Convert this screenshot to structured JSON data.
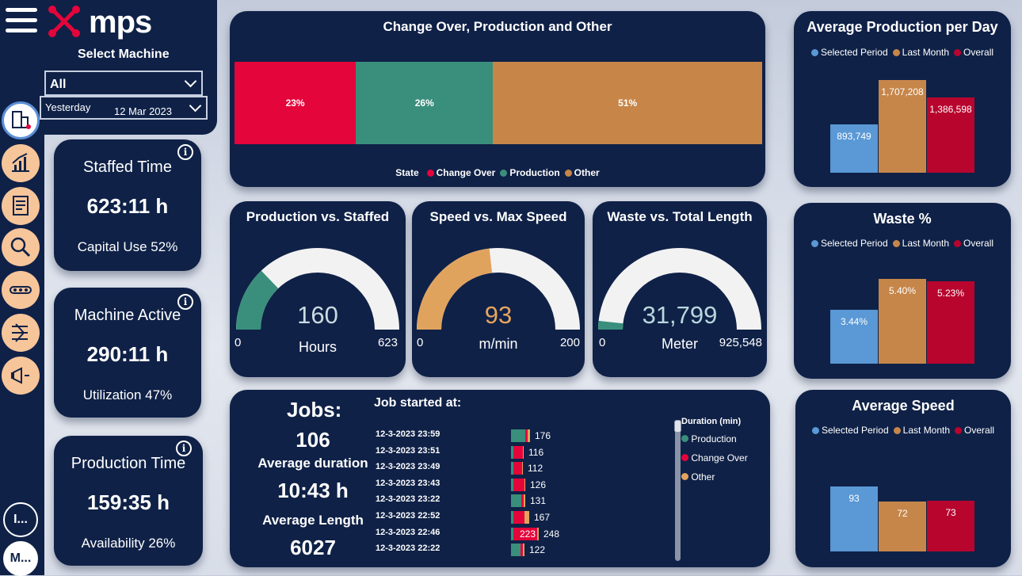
{
  "app": {
    "logo_text": "mps",
    "select_machine_label": "Select Machine"
  },
  "filters": {
    "machine": {
      "value": "All"
    },
    "period": {
      "value": "Yesterday",
      "date": "12 Mar 2023"
    }
  },
  "nav": {
    "items": [
      {
        "icon": "building-icon",
        "active": true
      },
      {
        "icon": "bar-chart-icon",
        "active": false
      },
      {
        "icon": "report-icon",
        "active": false
      },
      {
        "icon": "magnifier-icon",
        "active": false
      },
      {
        "icon": "conveyor-icon",
        "active": false
      },
      {
        "icon": "workflow-icon",
        "active": false
      },
      {
        "icon": "megaphone-icon",
        "active": false
      }
    ],
    "bottom_buttons": [
      {
        "label": "I..."
      },
      {
        "label": "M..."
      }
    ]
  },
  "kpis": [
    {
      "title": "Staffed Time",
      "value": "623:11 h",
      "sub": "Capital Use 52%",
      "info": "i"
    },
    {
      "title": "Machine Active",
      "value": "290:11 h",
      "sub": "Utilization 47%",
      "info": "i"
    },
    {
      "title": "Production Time",
      "value": "159:35 h",
      "sub": "Availability 26%",
      "info": "i"
    }
  ],
  "states_chart": {
    "title": "Change Over, Production and Other",
    "legend_title": "State",
    "segments": [
      {
        "name": "Change Over",
        "value": 23,
        "label": "23%",
        "color": "#e4053b"
      },
      {
        "name": "Production",
        "value": 26,
        "label": "26%",
        "color": "#3a8f7c"
      },
      {
        "name": "Other",
        "value": 51,
        "label": "51%",
        "color": "#c78547"
      }
    ]
  },
  "gauges": [
    {
      "title": "Production vs. Staffed",
      "value": 160,
      "display": "160",
      "unit": "Hours",
      "min": "0",
      "max": "623",
      "max_value": 623,
      "color": "#3a8f7c",
      "value_color": "#c9dbe0"
    },
    {
      "title": "Speed vs. Max Speed",
      "value": 93,
      "display": "93",
      "unit": "m/min",
      "min": "0",
      "max": "200",
      "max_value": 200,
      "color": "#e0a35e",
      "value_color": "#e7a55e"
    },
    {
      "title": "Waste vs. Total Length",
      "value": 31799,
      "display": "31,799",
      "unit": "Meter",
      "min": "0",
      "max": "925,548",
      "max_value": 925548,
      "color": "#3a8f7c",
      "value_color": "#b9d7de"
    }
  ],
  "legend_labels": {
    "selected": "Selected Period",
    "last_month": "Last Month",
    "overall": "Overall"
  },
  "colors": {
    "selected": "#5a98d6",
    "last_month": "#c6864a",
    "overall": "#b8052e",
    "panel": "#0f2147"
  },
  "compare_charts": [
    {
      "title": "Average Production per Day",
      "values": [
        893749,
        1707208,
        1386598
      ],
      "labels": [
        "893,749",
        "1,707,208",
        "1,386,598"
      ],
      "ymax": 1900000
    },
    {
      "title": "Waste %",
      "values": [
        3.44,
        5.4,
        5.23
      ],
      "labels": [
        "3.44%",
        "5.40%",
        "5.23%"
      ],
      "ymax": 6.6
    },
    {
      "title": "Average Speed",
      "values": [
        93,
        72,
        73
      ],
      "labels": [
        "93",
        "72",
        "73"
      ],
      "ymax": 150
    }
  ],
  "jobs": {
    "heading": "Jobs:",
    "count": "106",
    "avg_duration_label": "Average duration",
    "avg_duration": "10:43 h",
    "avg_length_label": "Average Length",
    "avg_length": "6027",
    "list_title": "Job started at:",
    "legend_title": "Duration (min)",
    "legend": [
      {
        "name": "Production",
        "color": "#3a8f7c"
      },
      {
        "name": "Change Over",
        "color": "#e4053b"
      },
      {
        "name": "Other",
        "color": "#e0a35e"
      }
    ],
    "rows": [
      {
        "time": "12-3-2023 23:59",
        "total": "176",
        "parts": [
          18,
          3,
          3
        ]
      },
      {
        "time": "12-3-2023 23:51",
        "total": "116",
        "parts": [
          3,
          12,
          1
        ]
      },
      {
        "time": "12-3-2023 23:49",
        "total": "112",
        "parts": [
          3,
          11,
          1
        ]
      },
      {
        "time": "12-3-2023 23:43",
        "total": "126",
        "parts": [
          3,
          14,
          1
        ]
      },
      {
        "time": "12-3-2023 23:22",
        "total": "131",
        "parts": [
          13,
          3,
          2
        ]
      },
      {
        "time": "12-3-2023 22:52",
        "total": "167",
        "parts": [
          3,
          14,
          6
        ]
      },
      {
        "time": "12-3-2023 22:46",
        "total": "248",
        "total_inside": "223",
        "parts": [
          3,
          30,
          2
        ]
      },
      {
        "time": "12-3-2023 22:22",
        "total": "122",
        "parts": [
          12,
          3,
          2
        ]
      }
    ]
  }
}
